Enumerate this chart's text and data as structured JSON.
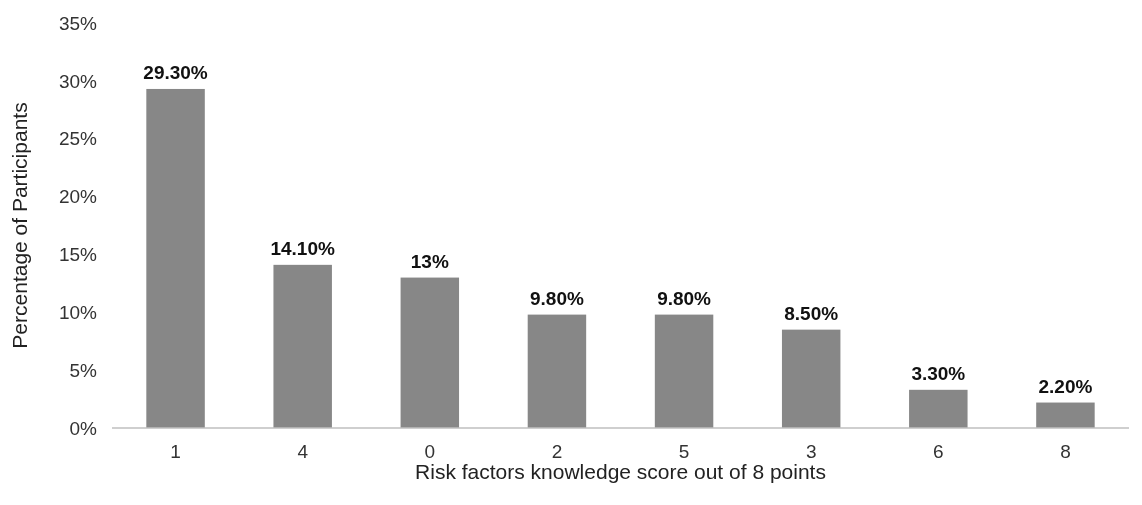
{
  "chart_data": {
    "type": "bar",
    "xlabel": "Risk factors knowledge score out of 8 points",
    "ylabel": "Percentage of Participants",
    "categories": [
      "1",
      "4",
      "0",
      "2",
      "5",
      "3",
      "6",
      "8"
    ],
    "values": [
      29.3,
      14.1,
      13,
      9.8,
      9.8,
      8.5,
      3.3,
      2.2
    ],
    "value_labels": [
      "29.30%",
      "14.10%",
      "13%",
      "9.80%",
      "9.80%",
      "8.50%",
      "3.30%",
      "2.20%"
    ],
    "color": "#878787",
    "ylim": [
      0,
      35
    ],
    "yticks": [
      {
        "value": 0,
        "label": "0%"
      },
      {
        "value": 5,
        "label": "5%"
      },
      {
        "value": 10,
        "label": "10%"
      },
      {
        "value": 15,
        "label": "15%"
      },
      {
        "value": 20,
        "label": "20%"
      },
      {
        "value": 25,
        "label": "25%"
      },
      {
        "value": 30,
        "label": "30%"
      },
      {
        "value": 35,
        "label": "35%"
      }
    ],
    "grid": false
  }
}
